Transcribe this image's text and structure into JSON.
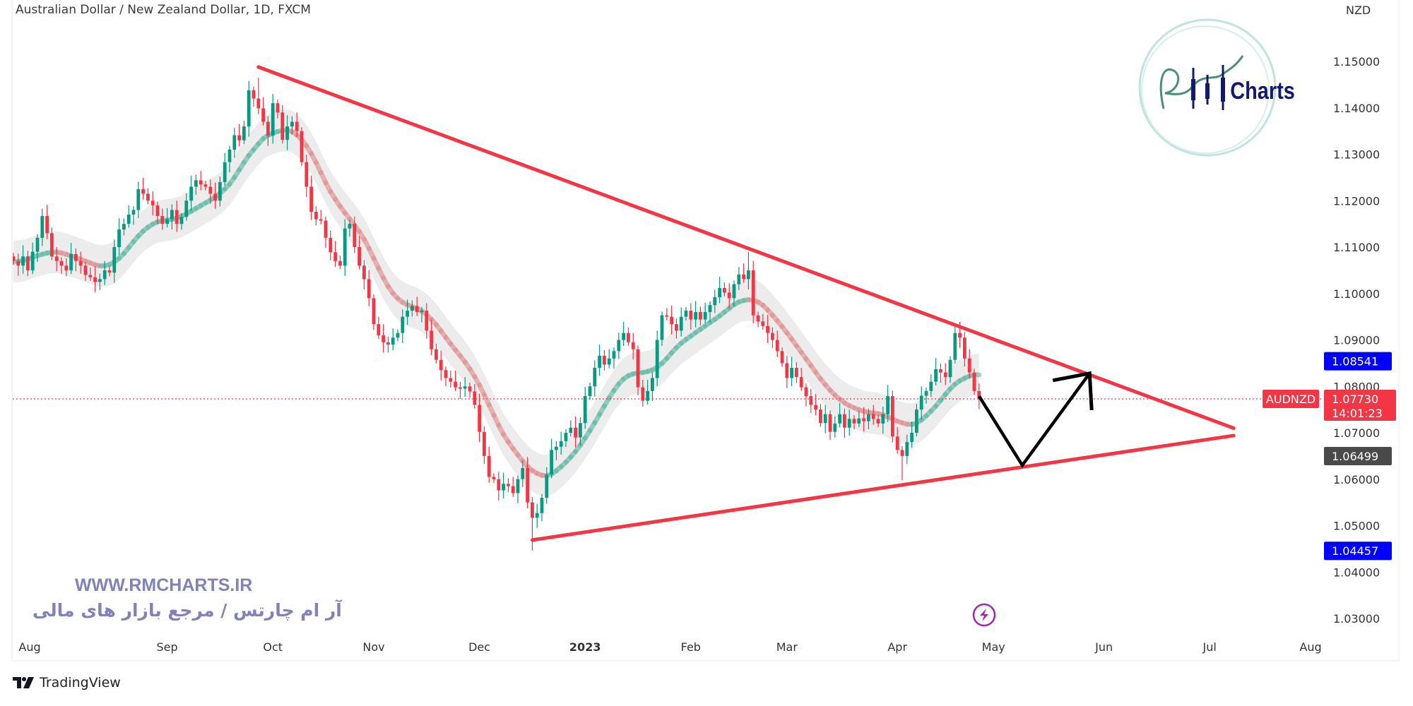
{
  "header": {
    "title": "Australian Dollar / New Zealand Dollar, 1D, FXCM",
    "currency": "NZD"
  },
  "watermark": {
    "url": "WWW.RMCHARTS.IR",
    "tagline": "آر ام چارتس / مرجع بازار های مالی"
  },
  "logo": {
    "text": "RM Charts"
  },
  "footer": {
    "brand": "TradingView"
  },
  "colors": {
    "up": "#089981",
    "down": "#f23645",
    "trendline": "#f23645",
    "projection": "#000000",
    "label_blue": "#0000ff",
    "label_gray": "#4a4a4a",
    "ma_up": "#5bb5a0",
    "ma_down": "#e08a8a",
    "event_icon": "#9c27b0"
  },
  "chart_data": {
    "type": "candlestick",
    "symbol": "AUDNZD",
    "timeframe": "1D",
    "first_date": "2022-07-19",
    "ylim": [
      1.025,
      1.163
    ],
    "y_ticks": [
      "1.15000",
      "1.14000",
      "1.13000",
      "1.12000",
      "1.11000",
      "1.10000",
      "1.09000",
      "1.08000",
      "1.07000",
      "1.06000",
      "1.05000",
      "1.04000",
      "1.03000"
    ],
    "x_ticks": [
      {
        "label": "Aug",
        "date": "2022-08-01"
      },
      {
        "label": "Sep",
        "date": "2022-09-01"
      },
      {
        "label": "Oct",
        "date": "2022-10-03"
      },
      {
        "label": "Nov",
        "date": "2022-11-01"
      },
      {
        "label": "Dec",
        "date": "2022-12-01"
      },
      {
        "label": "2023",
        "date": "2023-01-02",
        "bold": true
      },
      {
        "label": "Feb",
        "date": "2023-02-01"
      },
      {
        "label": "Mar",
        "date": "2023-03-01"
      },
      {
        "label": "Apr",
        "date": "2023-04-03"
      },
      {
        "label": "May",
        "date": "2023-05-01"
      },
      {
        "label": "Jun",
        "date": "2023-06-01"
      },
      {
        "label": "Jul",
        "date": "2023-07-03"
      },
      {
        "label": "Aug",
        "date": "2023-08-01"
      }
    ],
    "close": [
      1.107,
      1.106,
      1.108,
      1.105,
      1.109,
      1.112,
      1.1167,
      1.113,
      1.108,
      1.107,
      1.106,
      1.105,
      1.1085,
      1.107,
      1.106,
      1.104,
      1.1035,
      1.1025,
      1.1031,
      1.105,
      1.1045,
      1.11,
      1.1138,
      1.115,
      1.117,
      1.118,
      1.1225,
      1.1215,
      1.12,
      1.119,
      1.1167,
      1.115,
      1.116,
      1.118,
      1.115,
      1.1165,
      1.12,
      1.123,
      1.1244,
      1.1235,
      1.123,
      1.1215,
      1.12,
      1.124,
      1.1283,
      1.131,
      1.1341,
      1.133,
      1.136,
      1.1438,
      1.142,
      1.1399,
      1.137,
      1.134,
      1.141,
      1.139,
      1.1331,
      1.136,
      1.137,
      1.135,
      1.1283,
      1.123,
      1.1176,
      1.116,
      1.1157,
      1.112,
      1.1089,
      1.107,
      1.106,
      1.114,
      1.115,
      1.11,
      1.106,
      1.1031,
      1.099,
      1.0934,
      1.091,
      1.0895,
      1.089,
      1.0905,
      1.0915,
      1.095,
      1.0963,
      1.0973,
      1.096,
      1.0963,
      1.092,
      1.088,
      1.0857,
      1.0835,
      1.0818,
      1.081,
      1.0798,
      1.0795,
      1.08,
      1.0789,
      1.076,
      1.0702,
      1.065,
      1.0605,
      1.06,
      1.0576,
      1.059,
      1.0585,
      1.057,
      1.06,
      1.0624,
      1.055,
      1.0517,
      1.0527,
      1.056,
      1.061,
      1.0663,
      1.067,
      1.0682,
      1.07,
      1.0711,
      1.069,
      1.0721,
      1.0779,
      1.08,
      1.084,
      1.0866,
      1.0847,
      1.086,
      1.0876,
      1.09,
      1.0915,
      1.0895,
      1.088,
      1.0798,
      1.0769,
      1.079,
      1.0818,
      1.09,
      1.0953,
      1.095,
      1.0934,
      1.092,
      1.095,
      1.0963,
      1.0944,
      1.096,
      1.0944,
      1.096,
      1.0975,
      1.0992,
      1.1012,
      1.1002,
      1.099,
      1.102,
      1.1041,
      1.1031,
      1.105,
      1.0953,
      1.094,
      1.093,
      1.0915,
      1.09,
      1.0876,
      1.085,
      1.0818,
      1.084,
      1.082,
      1.0798,
      1.0779,
      1.076,
      1.075,
      1.0721,
      1.074,
      1.0702,
      1.072,
      1.074,
      1.0711,
      1.073,
      1.072,
      1.0731,
      1.0725,
      1.074,
      1.073,
      1.072,
      1.074,
      1.0779,
      1.0692,
      1.0663,
      1.065,
      1.068,
      1.07,
      1.075,
      1.078,
      1.079,
      1.081,
      1.0837,
      1.083,
      1.082,
      1.0857,
      1.0915,
      1.0905,
      1.086,
      1.083,
      1.079,
      1.0773
    ],
    "extremes": [
      {
        "date": "2022-09-28",
        "high": 1.1465
      },
      {
        "date": "2022-12-16",
        "low": 1.04457
      },
      {
        "date": "2023-02-17",
        "high": 1.109
      },
      {
        "date": "2023-04-19",
        "high": 1.093
      },
      {
        "date": "2023-04-04",
        "low": 1.0598
      }
    ],
    "trendlines": [
      {
        "from": {
          "date": "2022-09-28",
          "price": 1.1488
        },
        "to": {
          "date": "2023-07-10",
          "price": 1.071
        }
      },
      {
        "from": {
          "date": "2022-12-16",
          "price": 1.0469
        },
        "to": {
          "date": "2023-07-10",
          "price": 1.0694
        }
      }
    ],
    "projection": [
      {
        "date": "2023-04-26",
        "price": 1.0779
      },
      {
        "date": "2023-05-09",
        "price": 1.063
      },
      {
        "date": "2023-05-29",
        "price": 1.0828
      }
    ],
    "last_price": {
      "symbol": "AUDNZD",
      "price": "1.07730",
      "countdown": "14:01:23"
    },
    "price_labels": [
      {
        "value": "1.08541",
        "price": 1.08541,
        "color": "blue"
      },
      {
        "value": "1.06499",
        "price": 1.06499,
        "color": "gray"
      },
      {
        "value": "1.04457",
        "price": 1.04457,
        "color": "blue"
      }
    ],
    "event_marker": {
      "date": "2023-04-28",
      "icon": "lightning-icon"
    }
  }
}
